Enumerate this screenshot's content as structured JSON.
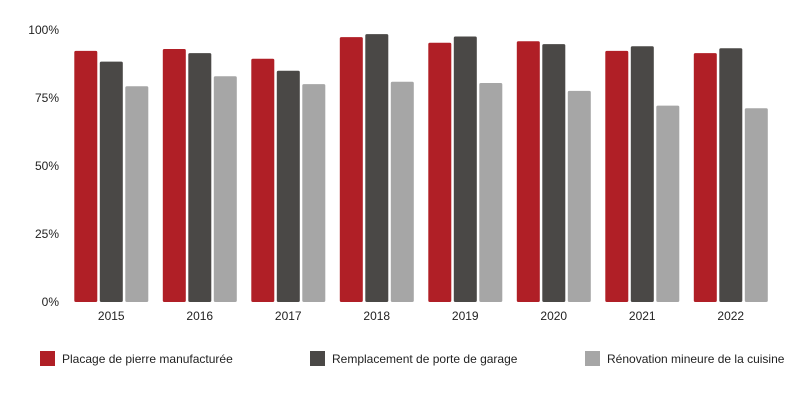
{
  "chart_data": {
    "type": "bar",
    "categories": [
      "2015",
      "2016",
      "2017",
      "2018",
      "2019",
      "2020",
      "2021",
      "2022"
    ],
    "series": [
      {
        "name": "Placage de pierre manufacturée",
        "color": "#b01f26",
        "values": [
          92.3,
          93.0,
          89.4,
          97.4,
          95.3,
          95.9,
          92.3,
          91.5
        ]
      },
      {
        "name": "Remplacement de porte de garage",
        "color": "#4a4846",
        "values": [
          88.4,
          91.5,
          85.0,
          98.5,
          97.6,
          94.8,
          94.0,
          93.3
        ]
      },
      {
        "name": "Rénovation mineure de la cuisine",
        "color": "#a6a6a6",
        "values": [
          79.3,
          83.0,
          80.1,
          81.0,
          80.5,
          77.6,
          72.2,
          71.2
        ]
      }
    ],
    "title": "",
    "xlabel": "",
    "ylabel": "",
    "ylim": [
      0,
      100
    ],
    "ytick_values": [
      0,
      25,
      50,
      75,
      100
    ],
    "ytick_labels": [
      "0%",
      "25%",
      "50%",
      "75%",
      "100%"
    ],
    "grid": false,
    "legend_position": "bottom"
  }
}
